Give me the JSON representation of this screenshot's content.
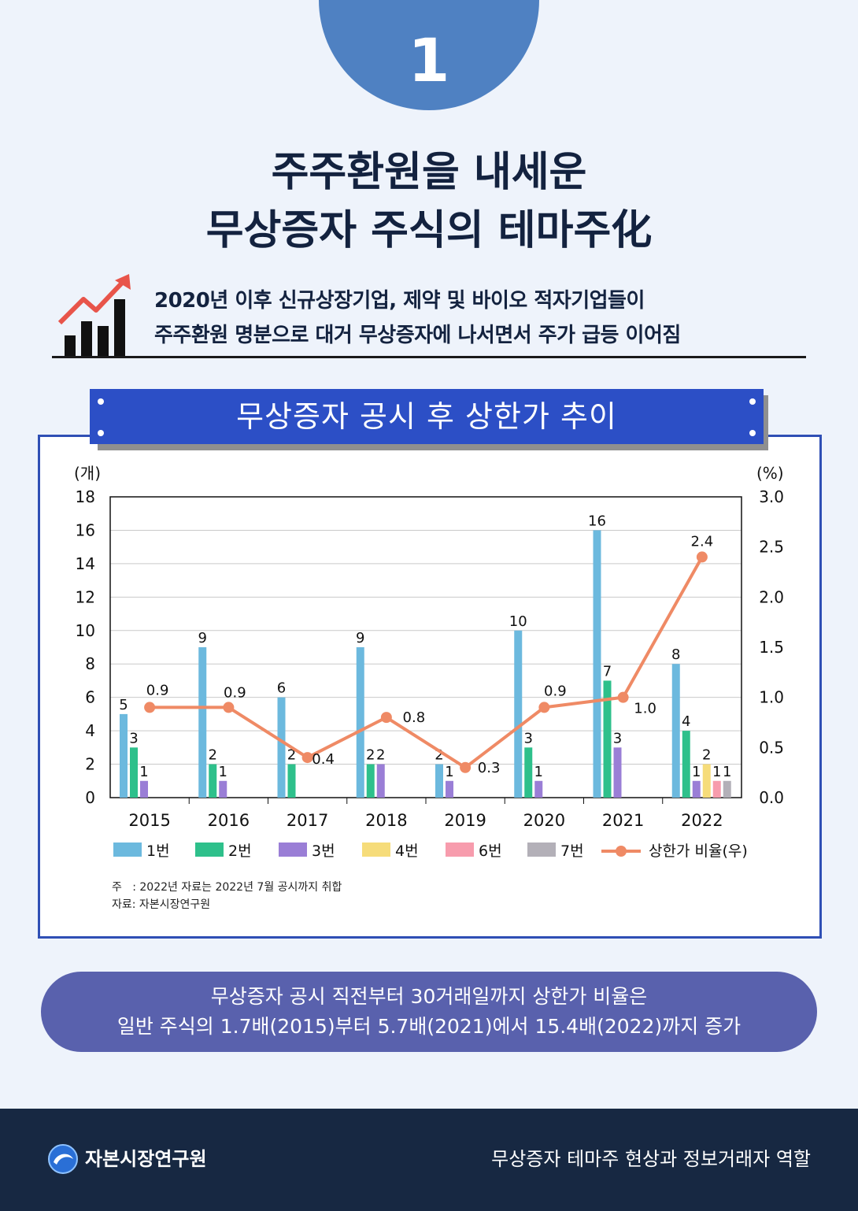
{
  "header": {
    "number": "1"
  },
  "title": {
    "line1": "주주환원을 내세운",
    "line2": "무상증자 주식의 테마주化"
  },
  "subtitle": {
    "line1": "2020년 이후 신규상장기업, 제약 및 바이오 적자기업들이",
    "line2": "주주환원 명분으로 대거 무상증자에 나서면서 주가 급등 이어짐",
    "icon": "rising-bar-chart-icon"
  },
  "chart_banner": "무상증자 공시 후 상한가 추이",
  "chart_data": {
    "type": "bar",
    "title": "무상증자 공시 후 상한가 추이",
    "categories": [
      "2015",
      "2016",
      "2017",
      "2018",
      "2019",
      "2020",
      "2021",
      "2022"
    ],
    "left_axis": {
      "unit": "(개)",
      "ylim": [
        0,
        18
      ],
      "ticks": [
        "0",
        "2",
        "4",
        "6",
        "8",
        "10",
        "12",
        "14",
        "16",
        "18"
      ]
    },
    "right_axis": {
      "unit": "(%)",
      "ylim": [
        0,
        3.0
      ],
      "ticks": [
        "0.0",
        "0.5",
        "1.0",
        "1.5",
        "2.0",
        "2.5",
        "3.0"
      ]
    },
    "series": [
      {
        "name": "1번",
        "color": "#6cb9de",
        "values": [
          5,
          9,
          6,
          9,
          2,
          10,
          16,
          8
        ]
      },
      {
        "name": "2번",
        "color": "#2ec08b",
        "values": [
          3,
          2,
          2,
          2,
          null,
          3,
          7,
          4
        ]
      },
      {
        "name": "3번",
        "color": "#9a7ed6",
        "values": [
          1,
          1,
          null,
          2,
          1,
          1,
          3,
          1
        ]
      },
      {
        "name": "4번",
        "color": "#f6dc7a",
        "values": [
          null,
          null,
          null,
          null,
          null,
          null,
          null,
          2
        ]
      },
      {
        "name": "6번",
        "color": "#f79cad",
        "values": [
          null,
          null,
          null,
          null,
          null,
          null,
          null,
          1
        ]
      },
      {
        "name": "7번",
        "color": "#b3b0b8",
        "values": [
          null,
          null,
          null,
          null,
          null,
          null,
          null,
          1
        ]
      }
    ],
    "line_series": {
      "name": "상한가 비율(우)",
      "color": "#ef8a65",
      "values": [
        0.9,
        0.9,
        0.4,
        0.8,
        0.3,
        0.9,
        1.0,
        2.4
      ],
      "labels": [
        "0.9",
        "0.9",
        "0.4",
        "0.8",
        "0.3",
        "0.9",
        "1.0",
        "2.4"
      ]
    },
    "grid": true,
    "legend": "bottom"
  },
  "notes": {
    "line1": "주   : 2022년 자료는 2022년 7월 공시까지 취합",
    "line2": "자료: 자본시장연구원"
  },
  "summary": {
    "line1": "무상증자 공시 직전부터 30거래일까지 상한가 비율은",
    "line2": "일반 주식의 1.7배(2015)부터 5.7배(2021)에서 15.4배(2022)까지 증가"
  },
  "footer": {
    "org": "자본시장연구원",
    "series_title": "무상증자 테마주 현상과 정보거래자 역할",
    "logo": "kcmi-logo-icon"
  }
}
